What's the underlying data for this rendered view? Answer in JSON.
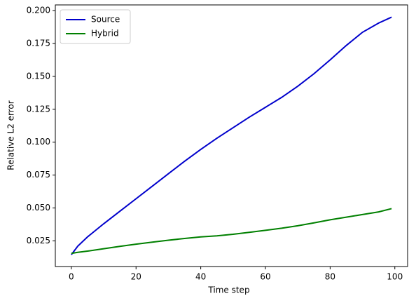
{
  "chart_data": {
    "type": "line",
    "xlabel": "Time step",
    "ylabel": "Relative L2 error",
    "x": [
      0,
      2,
      5,
      10,
      15,
      20,
      25,
      30,
      35,
      40,
      45,
      50,
      55,
      60,
      65,
      70,
      75,
      80,
      85,
      90,
      95,
      99
    ],
    "series": [
      {
        "name": "Source",
        "color": "#0000cc",
        "values": [
          0.0145,
          0.021,
          0.028,
          0.038,
          0.0475,
          0.057,
          0.0665,
          0.076,
          0.0855,
          0.0945,
          0.103,
          0.111,
          0.119,
          0.1265,
          0.134,
          0.1425,
          0.152,
          0.1625,
          0.1735,
          0.1835,
          0.1905,
          0.195
        ]
      },
      {
        "name": "Hybrid",
        "color": "#008000",
        "values": [
          0.0155,
          0.0163,
          0.0172,
          0.019,
          0.0208,
          0.0225,
          0.024,
          0.0255,
          0.0268,
          0.028,
          0.0288,
          0.03,
          0.0315,
          0.033,
          0.0346,
          0.0365,
          0.0387,
          0.041,
          0.043,
          0.045,
          0.047,
          0.0495
        ]
      }
    ],
    "xlim": [
      -4.95,
      103.95
    ],
    "xticks": [
      0,
      20,
      40,
      60,
      80,
      100
    ],
    "ylim": [
      0.0055,
      0.2043
    ],
    "yticks": [
      {
        "value": 0.025,
        "label": "0.025"
      },
      {
        "value": 0.05,
        "label": "0.050"
      },
      {
        "value": 0.075,
        "label": "0.075"
      },
      {
        "value": 0.1,
        "label": "0.100"
      },
      {
        "value": 0.125,
        "label": "0.125"
      },
      {
        "value": 0.15,
        "label": "0.150"
      },
      {
        "value": 0.175,
        "label": "0.175"
      },
      {
        "value": 0.2,
        "label": "0.200"
      }
    ],
    "legend": "upper-left",
    "grid": false
  }
}
